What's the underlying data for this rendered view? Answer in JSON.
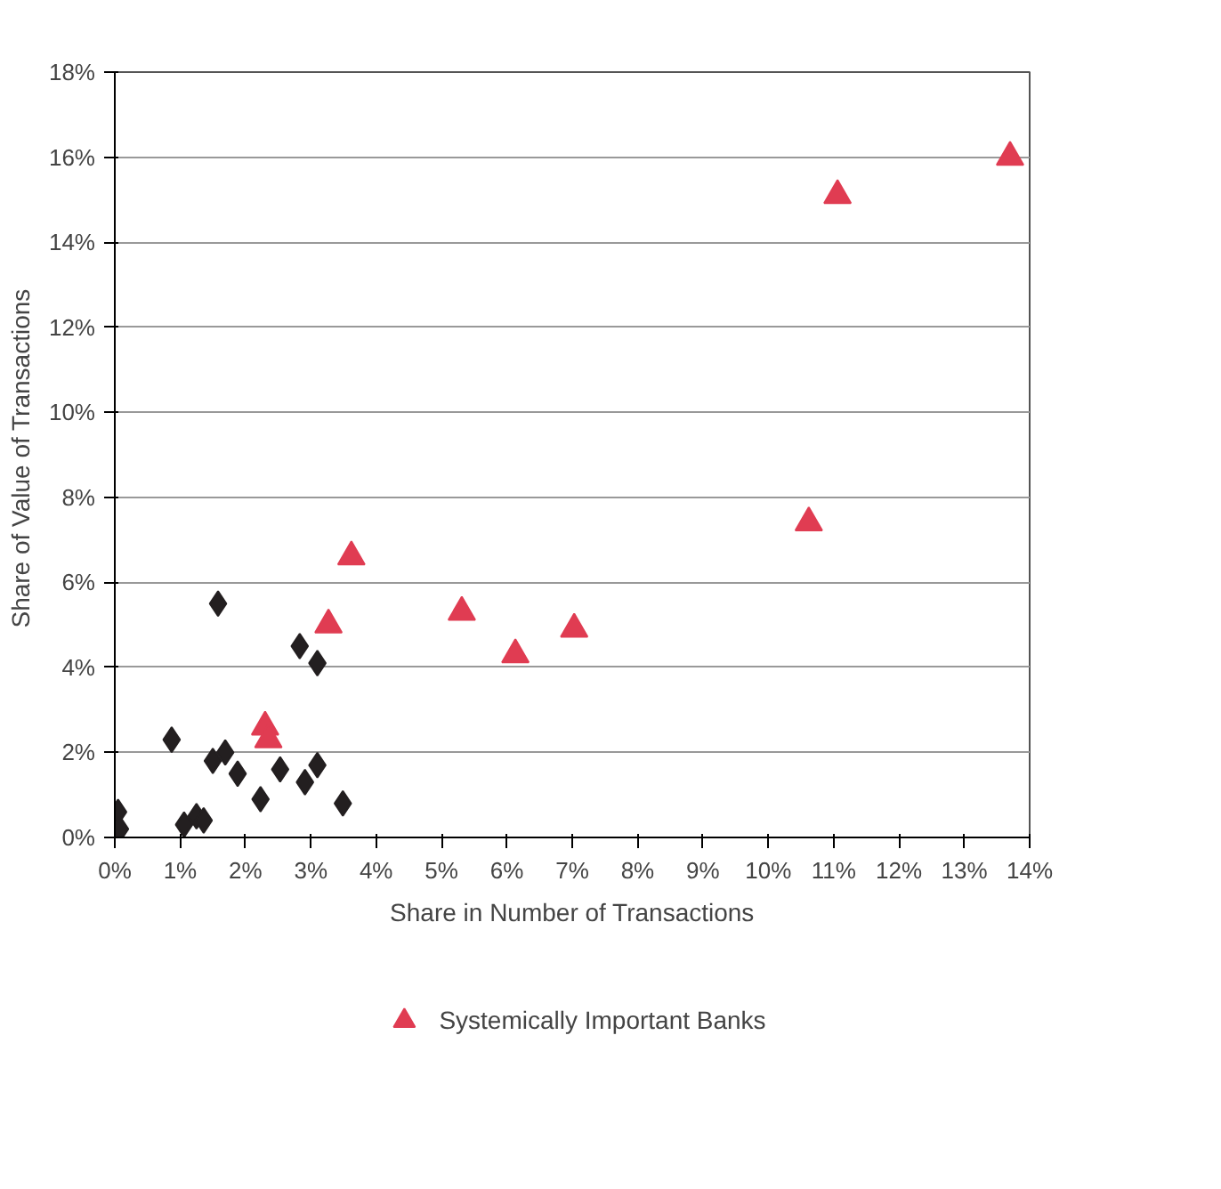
{
  "chart_data": {
    "type": "scatter",
    "xlabel": "Share in Number of Transactions",
    "ylabel": "Share of  Value of Transactions",
    "xlim": [
      0,
      14
    ],
    "xticks": [
      {
        "value": 0,
        "label": "0%"
      },
      {
        "value": 1,
        "label": "1%"
      },
      {
        "value": 2,
        "label": "2%"
      },
      {
        "value": 3,
        "label": "3%"
      },
      {
        "value": 4,
        "label": "4%"
      },
      {
        "value": 5,
        "label": "5%"
      },
      {
        "value": 6,
        "label": "6%"
      },
      {
        "value": 7,
        "label": "7%"
      },
      {
        "value": 8,
        "label": "8%"
      },
      {
        "value": 9,
        "label": "9%"
      },
      {
        "value": 10,
        "label": "10%"
      },
      {
        "value": 11,
        "label": "11%"
      },
      {
        "value": 12,
        "label": "12%"
      },
      {
        "value": 13,
        "label": "13%"
      },
      {
        "value": 14,
        "label": "14%"
      }
    ],
    "ylim": [
      0,
      18
    ],
    "yticks": [
      {
        "value": 0,
        "label": "0%"
      },
      {
        "value": 2,
        "label": "2%"
      },
      {
        "value": 4,
        "label": "4%"
      },
      {
        "value": 6,
        "label": "6%"
      },
      {
        "value": 8,
        "label": "8%"
      },
      {
        "value": 10,
        "label": "10%"
      },
      {
        "value": 12,
        "label": "12%"
      },
      {
        "value": 14,
        "label": "14%"
      },
      {
        "value": 16,
        "label": "16%"
      },
      {
        "value": 18,
        "label": "18%"
      }
    ],
    "grid": "y",
    "legend": "bottom",
    "series": [
      {
        "color": "#231f20",
        "marker": "diamond",
        "x": [
          0.05,
          0.08,
          0.87,
          1.06,
          1.25,
          1.36,
          1.5,
          1.69,
          1.88,
          1.58,
          2.23,
          2.53,
          2.83,
          3.1,
          2.91,
          3.1,
          3.49
        ],
        "values": [
          0.6,
          0.2,
          2.3,
          0.3,
          0.5,
          0.4,
          1.8,
          2.0,
          1.5,
          5.5,
          0.9,
          1.6,
          4.5,
          4.1,
          1.3,
          1.7,
          0.8
        ]
      },
      {
        "name": "Systemically Important Banks",
        "color": "#e03c52",
        "marker": "triangle",
        "x": [
          2.3,
          2.35,
          3.27,
          3.62,
          5.31,
          6.13,
          7.03,
          10.62,
          11.06,
          13.7
        ],
        "values": [
          2.6,
          2.3,
          5.0,
          6.6,
          5.3,
          4.3,
          4.9,
          7.4,
          15.1,
          16.0
        ]
      }
    ]
  }
}
